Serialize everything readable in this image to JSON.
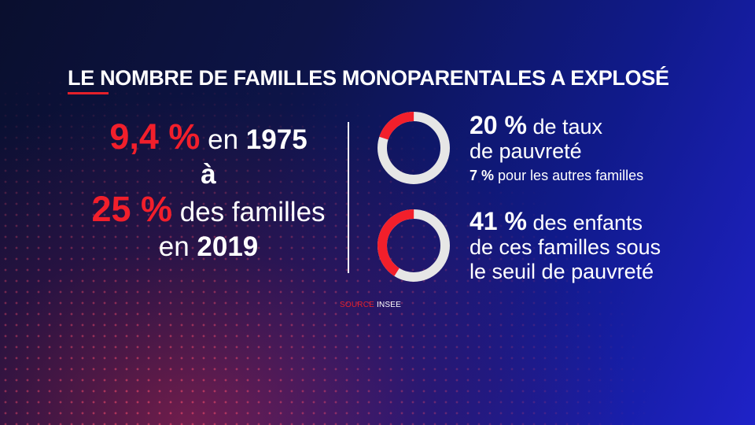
{
  "title": "LE NOMBRE DE FAMILLES MONOPARENTALES A EXPLOSÉ",
  "colors": {
    "accent_red": "#f21f2b",
    "ring_track": "#e6e6e6",
    "background_start": "#0a0f2e",
    "background_end": "#1f22c8"
  },
  "left": {
    "value_1975": "9,4 %",
    "text_1975": " en ",
    "year_1975": "1975",
    "connector": "à",
    "value_2019": "25 %",
    "text_2019": " des familles",
    "text_en": "en ",
    "year_2019": "2019"
  },
  "stat_poverty": {
    "value": "20 %",
    "text_line1": " de taux",
    "text_line2": "de pauvreté",
    "sub_value": "7 %",
    "sub_text": " pour les autres familles",
    "ring_fraction": 0.2
  },
  "stat_children": {
    "value": "41 %",
    "text_line1": " des enfants",
    "text_line2": "de ces familles sous",
    "text_line3": "le seuil de pauvreté",
    "ring_fraction": 0.41
  },
  "source": {
    "label": "SOURCE",
    "value": " INSEE"
  }
}
